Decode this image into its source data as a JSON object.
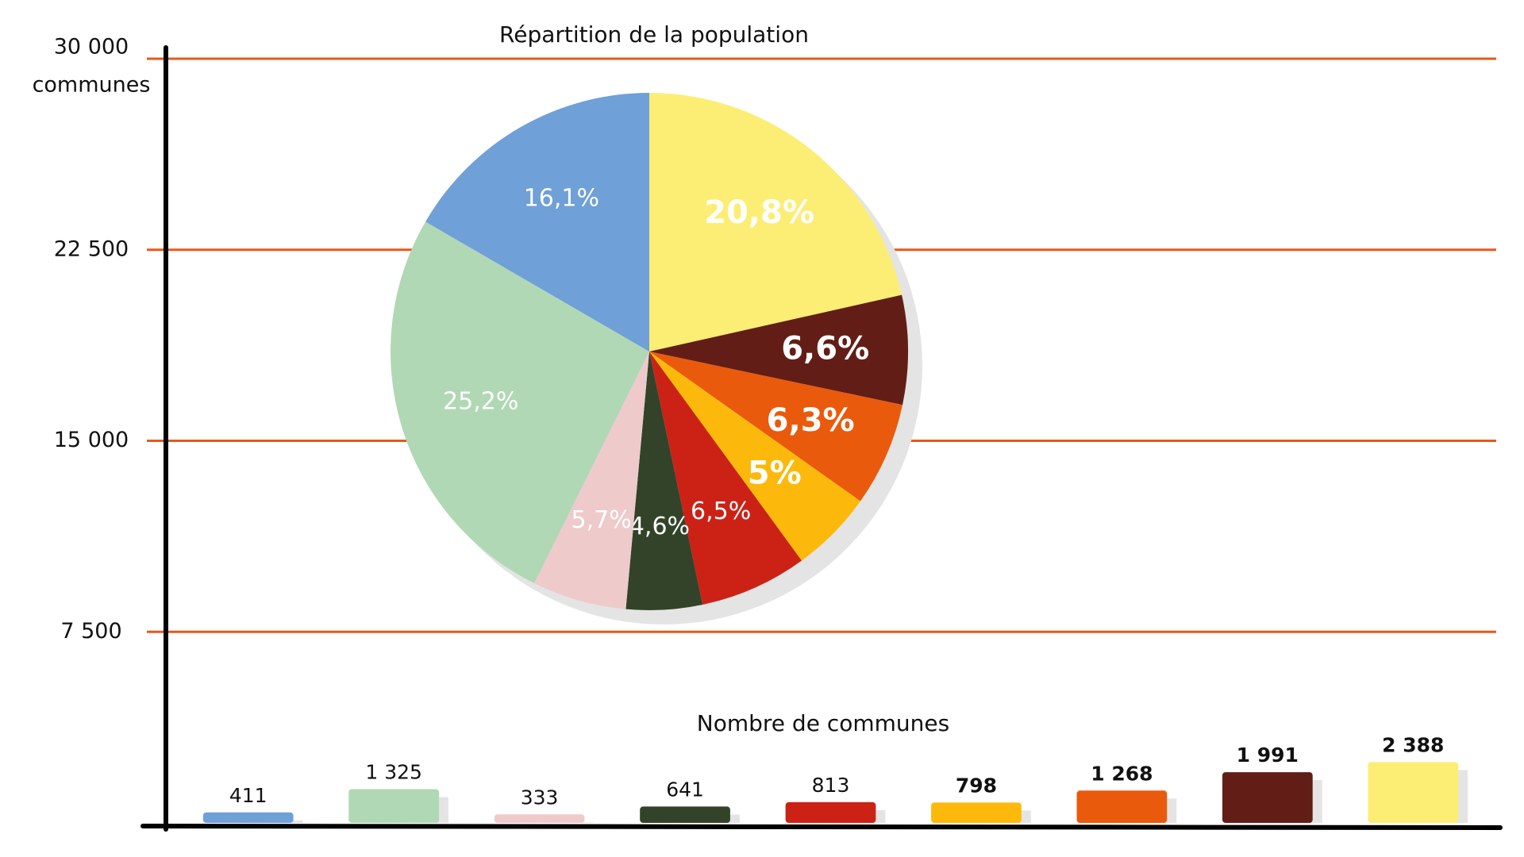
{
  "chart_data": [
    {
      "type": "bar",
      "title": "Nombre de communes",
      "y_label": "communes",
      "values": [
        411,
        1325,
        333,
        641,
        813,
        798,
        1268,
        1991,
        2388
      ],
      "value_labels": [
        "411",
        "1 325",
        "333",
        "641",
        "813",
        "798",
        "1 268",
        "1 991",
        "2 388"
      ],
      "colors": [
        "#6fa0d8",
        "#b0d8b4",
        "#eecacb",
        "#33432a",
        "#cc2216",
        "#fdb90b",
        "#ea5a0c",
        "#621e16",
        "#fcee74"
      ],
      "ylim": [
        0,
        30000
      ],
      "yticks": [
        {
          "value": 7500,
          "label": "7 500"
        },
        {
          "value": 15000,
          "label": "15 000"
        },
        {
          "value": 22500,
          "label": "22 500"
        },
        {
          "value": 30000,
          "label": "30 000"
        }
      ],
      "grid": true,
      "grid_color": "#e8581a"
    },
    {
      "type": "pie",
      "title": "Répartition de la population",
      "values": [
        20.8,
        6.6,
        6.3,
        5,
        6.5,
        4.6,
        5.7,
        25.2,
        16.1
      ],
      "value_labels": [
        "20,8%",
        "6,6%",
        "6,3%",
        "5%",
        "6,5%",
        "4,6%",
        "5,7%",
        "25,2%",
        "16,1%"
      ],
      "colors": [
        "#fcee74",
        "#621e16",
        "#ea5a0c",
        "#fdb90b",
        "#cc2216",
        "#33432a",
        "#eecacb",
        "#b0d8b4",
        "#6fa0d8"
      ]
    }
  ]
}
